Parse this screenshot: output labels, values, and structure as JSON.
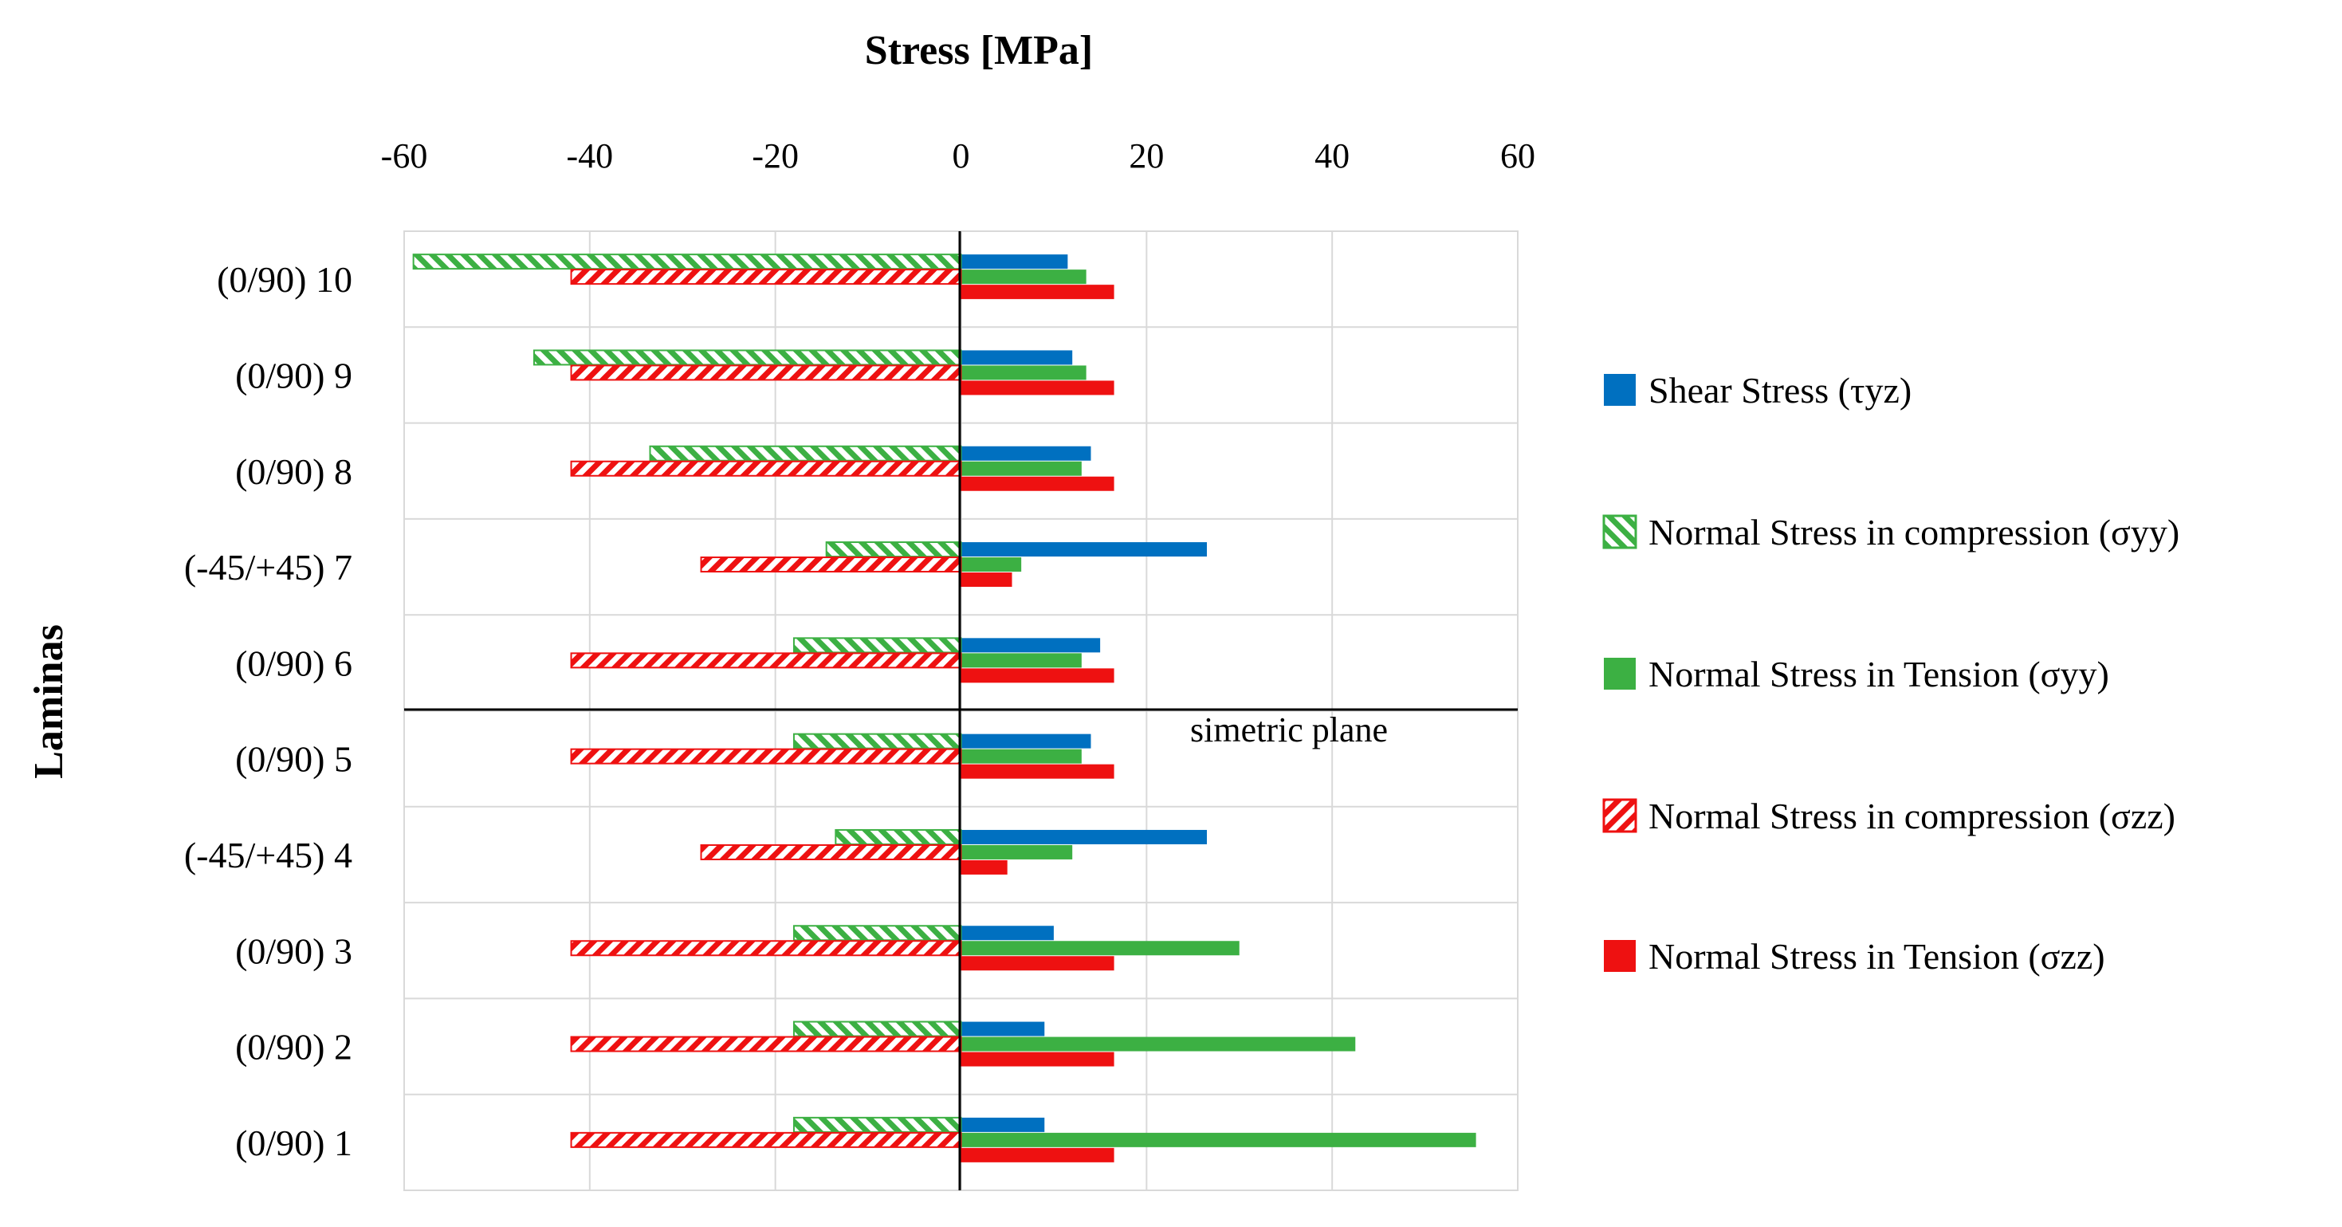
{
  "chart_data": {
    "type": "bar",
    "orientation": "horizontal",
    "title": "Stress [MPa]",
    "xlabel": "Stress [MPa]",
    "ylabel": "Laminas",
    "xlim": [
      -60,
      60
    ],
    "xticks": [
      "-60",
      "-40",
      "-20",
      "0",
      "20",
      "40",
      "60"
    ],
    "categories": [
      "(0/90) 10",
      "(0/90) 9",
      "(0/90) 8",
      "(-45/+45) 7",
      "(0/90) 6",
      "(0/90) 5",
      "(-45/+45) 4",
      "(0/90) 3",
      "(0/90) 2",
      "(0/90) 1"
    ],
    "series": [
      {
        "name": "Shear Stress (τyz)",
        "color": "#0070c0",
        "pattern": "solid",
        "values": [
          11.5,
          12.0,
          14.0,
          26.5,
          15.0,
          14.0,
          26.5,
          10.0,
          9.0,
          9.0
        ]
      },
      {
        "name": "Normal Stress in compression (σyy)",
        "color": "#3cb043",
        "pattern": "hatch-back",
        "values": [
          -59.0,
          -46.0,
          -33.5,
          -14.5,
          -18.0,
          -18.0,
          -13.5,
          -18.0,
          -18.0,
          -18.0
        ]
      },
      {
        "name": "Normal Stress in Tension (σyy)",
        "color": "#3cb043",
        "pattern": "solid",
        "values": [
          13.5,
          13.5,
          13.0,
          6.5,
          13.0,
          13.0,
          12.0,
          30.0,
          42.5,
          55.5
        ]
      },
      {
        "name": "Normal Stress in compression (σzz)",
        "color": "#ee1111",
        "pattern": "hatch-forward",
        "values": [
          -42.0,
          -42.0,
          -42.0,
          -28.0,
          -42.0,
          -42.0,
          -28.0,
          -42.0,
          -42.0,
          -42.0
        ]
      },
      {
        "name": "Normal Stress in Tension (σzz)",
        "color": "#ee1111",
        "pattern": "solid",
        "values": [
          16.5,
          16.5,
          16.5,
          5.5,
          16.5,
          16.5,
          5.0,
          16.5,
          16.5,
          16.5
        ]
      }
    ],
    "annotation": "simetric plane",
    "symmetry_plane_between": [
      "(0/90) 6",
      "(0/90) 5"
    ],
    "legend_position": "right",
    "grid": true
  }
}
